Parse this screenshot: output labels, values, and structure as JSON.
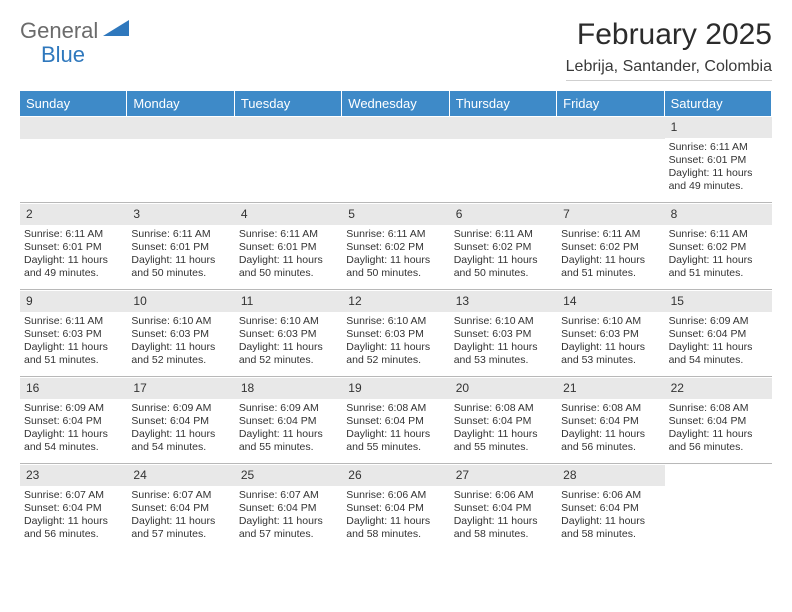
{
  "logo": {
    "word1": "General",
    "word2": "Blue",
    "color_word1": "#6b6b6b",
    "color_word2": "#2f78bd",
    "tri_color": "#2f78bd"
  },
  "title": "February 2025",
  "location": "Lebrija, Santander, Colombia",
  "header_bg": "#3e8ac8",
  "daynum_bg": "#e8e8e8",
  "day_headers": [
    "Sunday",
    "Monday",
    "Tuesday",
    "Wednesday",
    "Thursday",
    "Friday",
    "Saturday"
  ],
  "weeks": [
    [
      {
        "blank": true
      },
      {
        "blank": true
      },
      {
        "blank": true
      },
      {
        "blank": true
      },
      {
        "blank": true
      },
      {
        "blank": true
      },
      {
        "n": "1",
        "sunrise": "6:11 AM",
        "sunset": "6:01 PM",
        "daylight": "11 hours and 49 minutes."
      }
    ],
    [
      {
        "n": "2",
        "sunrise": "6:11 AM",
        "sunset": "6:01 PM",
        "daylight": "11 hours and 49 minutes."
      },
      {
        "n": "3",
        "sunrise": "6:11 AM",
        "sunset": "6:01 PM",
        "daylight": "11 hours and 50 minutes."
      },
      {
        "n": "4",
        "sunrise": "6:11 AM",
        "sunset": "6:01 PM",
        "daylight": "11 hours and 50 minutes."
      },
      {
        "n": "5",
        "sunrise": "6:11 AM",
        "sunset": "6:02 PM",
        "daylight": "11 hours and 50 minutes."
      },
      {
        "n": "6",
        "sunrise": "6:11 AM",
        "sunset": "6:02 PM",
        "daylight": "11 hours and 50 minutes."
      },
      {
        "n": "7",
        "sunrise": "6:11 AM",
        "sunset": "6:02 PM",
        "daylight": "11 hours and 51 minutes."
      },
      {
        "n": "8",
        "sunrise": "6:11 AM",
        "sunset": "6:02 PM",
        "daylight": "11 hours and 51 minutes."
      }
    ],
    [
      {
        "n": "9",
        "sunrise": "6:11 AM",
        "sunset": "6:03 PM",
        "daylight": "11 hours and 51 minutes."
      },
      {
        "n": "10",
        "sunrise": "6:10 AM",
        "sunset": "6:03 PM",
        "daylight": "11 hours and 52 minutes."
      },
      {
        "n": "11",
        "sunrise": "6:10 AM",
        "sunset": "6:03 PM",
        "daylight": "11 hours and 52 minutes."
      },
      {
        "n": "12",
        "sunrise": "6:10 AM",
        "sunset": "6:03 PM",
        "daylight": "11 hours and 52 minutes."
      },
      {
        "n": "13",
        "sunrise": "6:10 AM",
        "sunset": "6:03 PM",
        "daylight": "11 hours and 53 minutes."
      },
      {
        "n": "14",
        "sunrise": "6:10 AM",
        "sunset": "6:03 PM",
        "daylight": "11 hours and 53 minutes."
      },
      {
        "n": "15",
        "sunrise": "6:09 AM",
        "sunset": "6:04 PM",
        "daylight": "11 hours and 54 minutes."
      }
    ],
    [
      {
        "n": "16",
        "sunrise": "6:09 AM",
        "sunset": "6:04 PM",
        "daylight": "11 hours and 54 minutes."
      },
      {
        "n": "17",
        "sunrise": "6:09 AM",
        "sunset": "6:04 PM",
        "daylight": "11 hours and 54 minutes."
      },
      {
        "n": "18",
        "sunrise": "6:09 AM",
        "sunset": "6:04 PM",
        "daylight": "11 hours and 55 minutes."
      },
      {
        "n": "19",
        "sunrise": "6:08 AM",
        "sunset": "6:04 PM",
        "daylight": "11 hours and 55 minutes."
      },
      {
        "n": "20",
        "sunrise": "6:08 AM",
        "sunset": "6:04 PM",
        "daylight": "11 hours and 55 minutes."
      },
      {
        "n": "21",
        "sunrise": "6:08 AM",
        "sunset": "6:04 PM",
        "daylight": "11 hours and 56 minutes."
      },
      {
        "n": "22",
        "sunrise": "6:08 AM",
        "sunset": "6:04 PM",
        "daylight": "11 hours and 56 minutes."
      }
    ],
    [
      {
        "n": "23",
        "sunrise": "6:07 AM",
        "sunset": "6:04 PM",
        "daylight": "11 hours and 56 minutes."
      },
      {
        "n": "24",
        "sunrise": "6:07 AM",
        "sunset": "6:04 PM",
        "daylight": "11 hours and 57 minutes."
      },
      {
        "n": "25",
        "sunrise": "6:07 AM",
        "sunset": "6:04 PM",
        "daylight": "11 hours and 57 minutes."
      },
      {
        "n": "26",
        "sunrise": "6:06 AM",
        "sunset": "6:04 PM",
        "daylight": "11 hours and 58 minutes."
      },
      {
        "n": "27",
        "sunrise": "6:06 AM",
        "sunset": "6:04 PM",
        "daylight": "11 hours and 58 minutes."
      },
      {
        "n": "28",
        "sunrise": "6:06 AM",
        "sunset": "6:04 PM",
        "daylight": "11 hours and 58 minutes."
      },
      {
        "blank": true,
        "noBand": true
      }
    ]
  ],
  "labels": {
    "sunrise": "Sunrise:",
    "sunset": "Sunset:",
    "daylight": "Daylight:"
  }
}
